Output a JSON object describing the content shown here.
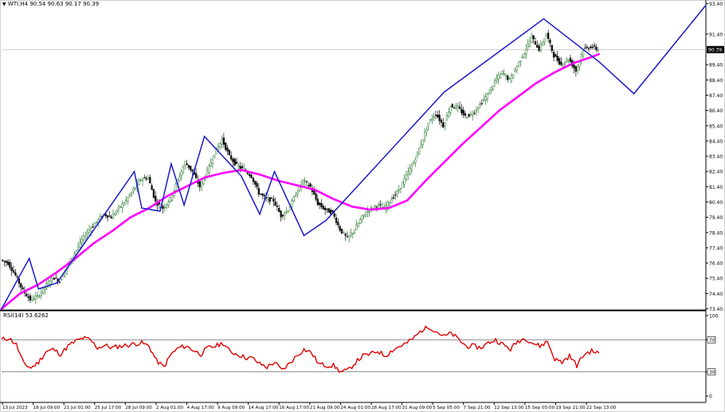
{
  "header": {
    "arrow": "▼",
    "symbol": "WTI,H4",
    "ohlc": "90.54 90.63 90.17 90.39"
  },
  "rsi_header": "RSI(14) 53.6262",
  "current_price_label": "90.39",
  "colors": {
    "bull_candle": "#2e7d32",
    "bear_candle": "#111111",
    "moving_average": "#ff00ff",
    "pattern_lines": "#1a1acc",
    "rsi_line": "#e00000",
    "axis": "#000000",
    "current_price_line": "#bdbdbd",
    "current_price_box": "#000000"
  },
  "chart_data": [
    {
      "type": "candlestick",
      "symbol": "WTI",
      "timeframe": "H4",
      "y_ticks": [
        93.4,
        91.4,
        89.4,
        88.4,
        87.4,
        86.4,
        85.4,
        84.4,
        83.4,
        82.4,
        81.4,
        80.4,
        79.4,
        78.4,
        77.4,
        76.4,
        75.4,
        74.4,
        73.4
      ],
      "y_tick_labels": [
        "93.40",
        "91.40",
        "89.40",
        "88.40",
        "87.40",
        "86.40",
        "85.40",
        "84.40",
        "83.40",
        "82.40",
        "81.40",
        "80.40",
        "79.40",
        "78.40",
        "77.40",
        "76.40",
        "75.40",
        "74.40",
        "73.40"
      ],
      "ylim": [
        73.0,
        93.6
      ],
      "x_tick_labels": [
        "13 Jul 2023",
        "18 Jul 09:00",
        "21 Jul 01:00",
        "25 Jul 17:00",
        "28 Jul 09:00",
        "2 Aug 01:00",
        "4 Aug 17:00",
        "9 Aug 09:00",
        "14 Aug 17:00",
        "16 Aug 17:00",
        "21 Aug 09:00",
        "24 Aug 01:00",
        "28 Aug 17:00",
        "31 Aug 09:00",
        "5 Sep 05:00",
        "7 Sep 21:00",
        "12 Sep 13:00",
        "15 Sep 05:00",
        "19 Sep 21:00",
        "22 Sep 13:00"
      ],
      "current_price": 90.39,
      "price_path": [
        [
          0,
          76.6
        ],
        [
          4,
          76.4
        ],
        [
          8,
          75.6
        ],
        [
          12,
          74.6
        ],
        [
          16,
          74.0
        ],
        [
          20,
          74.2
        ],
        [
          24,
          74.8
        ],
        [
          28,
          75.5
        ],
        [
          32,
          75.2
        ],
        [
          36,
          76.2
        ],
        [
          40,
          77.0
        ],
        [
          44,
          77.9
        ],
        [
          48,
          78.6
        ],
        [
          52,
          79.1
        ],
        [
          56,
          79.6
        ],
        [
          60,
          79.4
        ],
        [
          64,
          80.0
        ],
        [
          68,
          80.5
        ],
        [
          72,
          81.2
        ],
        [
          76,
          81.9
        ],
        [
          80,
          82.0
        ],
        [
          84,
          80.4
        ],
        [
          88,
          80.0
        ],
        [
          92,
          80.6
        ],
        [
          96,
          81.8
        ],
        [
          100,
          83.0
        ],
        [
          104,
          82.4
        ],
        [
          108,
          81.4
        ],
        [
          112,
          82.4
        ],
        [
          116,
          83.6
        ],
        [
          120,
          84.5
        ],
        [
          124,
          83.4
        ],
        [
          128,
          82.8
        ],
        [
          132,
          82.5
        ],
        [
          136,
          82.1
        ],
        [
          140,
          81.0
        ],
        [
          144,
          80.6
        ],
        [
          148,
          80.5
        ],
        [
          152,
          79.5
        ],
        [
          156,
          79.9
        ],
        [
          160,
          80.9
        ],
        [
          164,
          81.8
        ],
        [
          168,
          81.4
        ],
        [
          172,
          80.3
        ],
        [
          176,
          79.9
        ],
        [
          180,
          79.7
        ],
        [
          184,
          78.6
        ],
        [
          188,
          78.0
        ],
        [
          192,
          78.6
        ],
        [
          196,
          79.4
        ],
        [
          200,
          79.9
        ],
        [
          204,
          80.2
        ],
        [
          208,
          80.0
        ],
        [
          212,
          80.6
        ],
        [
          216,
          81.2
        ],
        [
          220,
          82.1
        ],
        [
          224,
          83.0
        ],
        [
          228,
          84.2
        ],
        [
          232,
          85.6
        ],
        [
          236,
          86.2
        ],
        [
          240,
          85.4
        ],
        [
          244,
          86.7
        ],
        [
          248,
          86.6
        ],
        [
          252,
          86.0
        ],
        [
          256,
          86.2
        ],
        [
          260,
          86.8
        ],
        [
          264,
          87.4
        ],
        [
          268,
          88.3
        ],
        [
          272,
          88.9
        ],
        [
          276,
          88.4
        ],
        [
          280,
          89.3
        ],
        [
          284,
          90.2
        ],
        [
          288,
          91.2
        ],
        [
          292,
          90.4
        ],
        [
          296,
          91.4
        ],
        [
          300,
          90.0
        ],
        [
          304,
          89.4
        ],
        [
          308,
          89.8
        ],
        [
          312,
          89.0
        ],
        [
          316,
          90.4
        ],
        [
          320,
          90.6
        ],
        [
          324,
          90.39
        ]
      ],
      "moving_average": [
        [
          0,
          73.4
        ],
        [
          10,
          74.4
        ],
        [
          20,
          75.0
        ],
        [
          30,
          75.8
        ],
        [
          40,
          76.7
        ],
        [
          50,
          77.7
        ],
        [
          60,
          78.5
        ],
        [
          70,
          79.4
        ],
        [
          80,
          80.0
        ],
        [
          90,
          80.8
        ],
        [
          100,
          81.4
        ],
        [
          110,
          82.0
        ],
        [
          120,
          82.3
        ],
        [
          130,
          82.5
        ],
        [
          140,
          82.2
        ],
        [
          150,
          81.8
        ],
        [
          160,
          81.5
        ],
        [
          170,
          81.2
        ],
        [
          180,
          80.6
        ],
        [
          190,
          80.1
        ],
        [
          200,
          79.9
        ],
        [
          210,
          80.0
        ],
        [
          220,
          80.5
        ],
        [
          230,
          81.8
        ],
        [
          240,
          83.0
        ],
        [
          250,
          84.2
        ],
        [
          260,
          85.3
        ],
        [
          270,
          86.4
        ],
        [
          280,
          87.3
        ],
        [
          290,
          88.2
        ],
        [
          300,
          88.9
        ],
        [
          310,
          89.5
        ],
        [
          320,
          89.9
        ],
        [
          324,
          90.1
        ]
      ],
      "pattern_lines": [
        [
          0,
          73.4
        ],
        [
          15,
          76.7
        ],
        [
          20,
          74.7
        ],
        [
          30,
          75.1
        ],
        [
          72,
          82.4
        ],
        [
          76,
          80.0
        ],
        [
          86,
          79.8
        ],
        [
          92,
          82.9
        ],
        [
          99,
          80.2
        ],
        [
          110,
          84.7
        ],
        [
          130,
          82.1
        ],
        [
          140,
          79.6
        ],
        [
          148,
          82.4
        ],
        [
          164,
          78.2
        ],
        [
          176,
          79.2
        ],
        [
          240,
          87.6
        ],
        [
          294,
          92.4
        ],
        [
          324,
          89.6
        ],
        [
          343,
          87.5
        ],
        [
          382,
          93.3
        ]
      ]
    },
    {
      "type": "line",
      "indicator": "RSI(14)",
      "value": 53.6262,
      "ylim": [
        0,
        100
      ],
      "y_ticks": [
        100,
        70,
        30,
        0
      ],
      "y_tick_labels": [
        "100",
        "70",
        "30",
        "0"
      ],
      "levels": [
        70,
        30
      ],
      "values": [
        [
          0,
          70
        ],
        [
          4,
          72
        ],
        [
          8,
          64
        ],
        [
          12,
          40
        ],
        [
          16,
          35
        ],
        [
          20,
          42
        ],
        [
          24,
          55
        ],
        [
          28,
          58
        ],
        [
          32,
          52
        ],
        [
          36,
          62
        ],
        [
          40,
          68
        ],
        [
          44,
          72
        ],
        [
          48,
          70
        ],
        [
          52,
          60
        ],
        [
          56,
          63
        ],
        [
          60,
          60
        ],
        [
          64,
          62
        ],
        [
          68,
          63
        ],
        [
          72,
          65
        ],
        [
          76,
          66
        ],
        [
          80,
          62
        ],
        [
          84,
          44
        ],
        [
          88,
          36
        ],
        [
          92,
          52
        ],
        [
          96,
          60
        ],
        [
          100,
          62
        ],
        [
          104,
          57
        ],
        [
          108,
          52
        ],
        [
          112,
          60
        ],
        [
          116,
          62
        ],
        [
          120,
          66
        ],
        [
          124,
          55
        ],
        [
          128,
          52
        ],
        [
          132,
          48
        ],
        [
          136,
          47
        ],
        [
          140,
          40
        ],
        [
          144,
          36
        ],
        [
          148,
          42
        ],
        [
          152,
          32
        ],
        [
          156,
          40
        ],
        [
          160,
          50
        ],
        [
          164,
          58
        ],
        [
          168,
          54
        ],
        [
          172,
          40
        ],
        [
          176,
          38
        ],
        [
          180,
          38
        ],
        [
          184,
          30
        ],
        [
          188,
          32
        ],
        [
          192,
          42
        ],
        [
          196,
          50
        ],
        [
          200,
          52
        ],
        [
          204,
          56
        ],
        [
          208,
          50
        ],
        [
          212,
          57
        ],
        [
          216,
          62
        ],
        [
          220,
          66
        ],
        [
          224,
          73
        ],
        [
          228,
          82
        ],
        [
          232,
          86
        ],
        [
          236,
          80
        ],
        [
          240,
          74
        ],
        [
          244,
          78
        ],
        [
          248,
          70
        ],
        [
          252,
          62
        ],
        [
          256,
          62
        ],
        [
          260,
          60
        ],
        [
          264,
          66
        ],
        [
          268,
          70
        ],
        [
          272,
          64
        ],
        [
          276,
          58
        ],
        [
          280,
          68
        ],
        [
          284,
          72
        ],
        [
          288,
          66
        ],
        [
          292,
          62
        ],
        [
          296,
          68
        ],
        [
          300,
          46
        ],
        [
          304,
          42
        ],
        [
          308,
          50
        ],
        [
          312,
          38
        ],
        [
          316,
          52
        ],
        [
          320,
          56
        ],
        [
          324,
          53.63
        ]
      ]
    }
  ]
}
